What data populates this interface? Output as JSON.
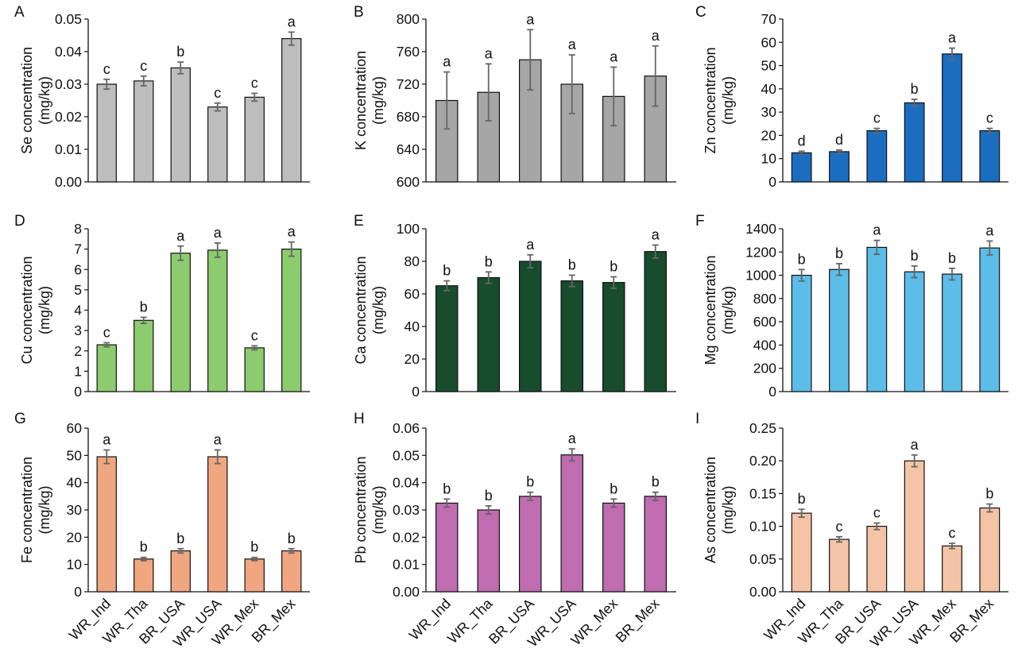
{
  "chart_data": [
    {
      "panel": "A",
      "type": "bar",
      "ylabel": "Se concentration",
      "yunit": "(mg/kg)",
      "ylim": [
        0,
        0.05
      ],
      "yticks": [
        "0.00",
        "0.01",
        "0.02",
        "0.03",
        "0.04",
        "0.05"
      ],
      "yticks_v": [
        0,
        0.01,
        0.02,
        0.03,
        0.04,
        0.05
      ],
      "color": "#bdbdbd",
      "values": [
        0.03,
        0.031,
        0.035,
        0.023,
        0.026,
        0.044
      ],
      "errors": [
        0.0015,
        0.0015,
        0.0018,
        0.0012,
        0.0012,
        0.002
      ],
      "labels": [
        "c",
        "c",
        "b",
        "c",
        "c",
        "a"
      ]
    },
    {
      "panel": "B",
      "type": "bar",
      "ylabel": "K concentration",
      "yunit": "(mg/kg)",
      "ylim": [
        600,
        800
      ],
      "yticks": [
        "600",
        "640",
        "680",
        "720",
        "760",
        "800"
      ],
      "yticks_v": [
        600,
        640,
        680,
        720,
        760,
        800
      ],
      "color": "#a6a6a6",
      "values": [
        700,
        710,
        750,
        720,
        705,
        730
      ],
      "errors": [
        35,
        35,
        37,
        36,
        36,
        37
      ],
      "labels": [
        "a",
        "a",
        "a",
        "a",
        "a",
        "a"
      ]
    },
    {
      "panel": "C",
      "type": "bar",
      "ylabel": "Zn concentration",
      "yunit": "(mg/kg)",
      "ylim": [
        0,
        70
      ],
      "yticks": [
        "0",
        "10",
        "20",
        "30",
        "40",
        "50",
        "60",
        "70"
      ],
      "yticks_v": [
        0,
        10,
        20,
        30,
        40,
        50,
        60,
        70
      ],
      "color": "#1b6dbf",
      "values": [
        12.5,
        13,
        22,
        34,
        55,
        22
      ],
      "errors": [
        0.7,
        0.7,
        1,
        1.5,
        2.5,
        1
      ],
      "labels": [
        "d",
        "d",
        "c",
        "b",
        "a",
        "c"
      ]
    },
    {
      "panel": "D",
      "type": "bar",
      "ylabel": "Cu concentration",
      "yunit": "(mg/kg)",
      "ylim": [
        0,
        8
      ],
      "yticks": [
        "0",
        "1",
        "2",
        "3",
        "4",
        "5",
        "6",
        "7",
        "8"
      ],
      "yticks_v": [
        0,
        1,
        2,
        3,
        4,
        5,
        6,
        7,
        8
      ],
      "color": "#8ccc6e",
      "values": [
        2.3,
        3.5,
        6.8,
        6.95,
        2.15,
        7.0
      ],
      "errors": [
        0.1,
        0.15,
        0.35,
        0.35,
        0.1,
        0.35
      ],
      "labels": [
        "c",
        "b",
        "a",
        "a",
        "c",
        "a"
      ]
    },
    {
      "panel": "E",
      "type": "bar",
      "ylabel": "Ca concentration",
      "yunit": "(mg/kg)",
      "ylim": [
        0,
        100
      ],
      "yticks": [
        "0",
        "20",
        "40",
        "60",
        "80",
        "100"
      ],
      "yticks_v": [
        0,
        20,
        40,
        60,
        80,
        100
      ],
      "color": "#174d2c",
      "values": [
        65,
        70,
        80,
        68,
        67,
        86
      ],
      "errors": [
        3,
        3.5,
        4,
        3.5,
        3.5,
        4
      ],
      "labels": [
        "b",
        "b",
        "a",
        "b",
        "b",
        "a"
      ]
    },
    {
      "panel": "F",
      "type": "bar",
      "ylabel": "Mg concentration",
      "yunit": "(mg/kg)",
      "ylim": [
        0,
        1400
      ],
      "yticks": [
        "0",
        "200",
        "400",
        "600",
        "800",
        "1000",
        "1200",
        "1400"
      ],
      "yticks_v": [
        0,
        200,
        400,
        600,
        800,
        1000,
        1200,
        1400
      ],
      "color": "#5bbde8",
      "values": [
        1000,
        1050,
        1240,
        1030,
        1010,
        1235
      ],
      "errors": [
        50,
        50,
        60,
        50,
        50,
        60
      ],
      "labels": [
        "b",
        "b",
        "a",
        "b",
        "b",
        "a"
      ]
    },
    {
      "panel": "G",
      "type": "bar",
      "ylabel": "Fe concentration",
      "yunit": "(mg/kg)",
      "ylim": [
        0,
        60
      ],
      "yticks": [
        "0",
        "10",
        "20",
        "30",
        "40",
        "50",
        "60"
      ],
      "yticks_v": [
        0,
        10,
        20,
        30,
        40,
        50,
        60
      ],
      "color": "#f0a77f",
      "values": [
        49.5,
        12,
        15,
        49.5,
        12,
        15
      ],
      "errors": [
        2.5,
        0.6,
        0.8,
        2.5,
        0.6,
        0.8
      ],
      "labels": [
        "a",
        "b",
        "b",
        "a",
        "b",
        "b"
      ]
    },
    {
      "panel": "H",
      "type": "bar",
      "ylabel": "Pb concentration",
      "yunit": "(mg/kg)",
      "ylim": [
        0,
        0.06
      ],
      "yticks": [
        "0.00",
        "0.01",
        "0.02",
        "0.03",
        "0.04",
        "0.05",
        "0.06"
      ],
      "yticks_v": [
        0,
        0.01,
        0.02,
        0.03,
        0.04,
        0.05,
        0.06
      ],
      "color": "#bf6cb0",
      "values": [
        0.0325,
        0.03,
        0.035,
        0.0502,
        0.0325,
        0.035
      ],
      "errors": [
        0.0015,
        0.0015,
        0.0015,
        0.0022,
        0.0015,
        0.0015
      ],
      "labels": [
        "b",
        "b",
        "b",
        "a",
        "b",
        "b"
      ]
    },
    {
      "panel": "I",
      "type": "bar",
      "ylabel": "As concentration",
      "yunit": "(mg/kg)",
      "ylim": [
        0,
        0.25
      ],
      "yticks": [
        "0.00",
        "0.05",
        "0.10",
        "0.15",
        "0.20",
        "0.25"
      ],
      "yticks_v": [
        0,
        0.05,
        0.1,
        0.15,
        0.2,
        0.25
      ],
      "color": "#f5c4a6",
      "values": [
        0.12,
        0.08,
        0.1,
        0.2,
        0.07,
        0.128
      ],
      "errors": [
        0.006,
        0.004,
        0.005,
        0.009,
        0.004,
        0.006
      ],
      "labels": [
        "b",
        "c",
        "c",
        "a",
        "c",
        "b"
      ]
    }
  ],
  "categories": [
    "WR_Ind",
    "WR_Tha",
    "BR_USA",
    "WR_USA",
    "WR_Mex",
    "BR_Mex"
  ]
}
